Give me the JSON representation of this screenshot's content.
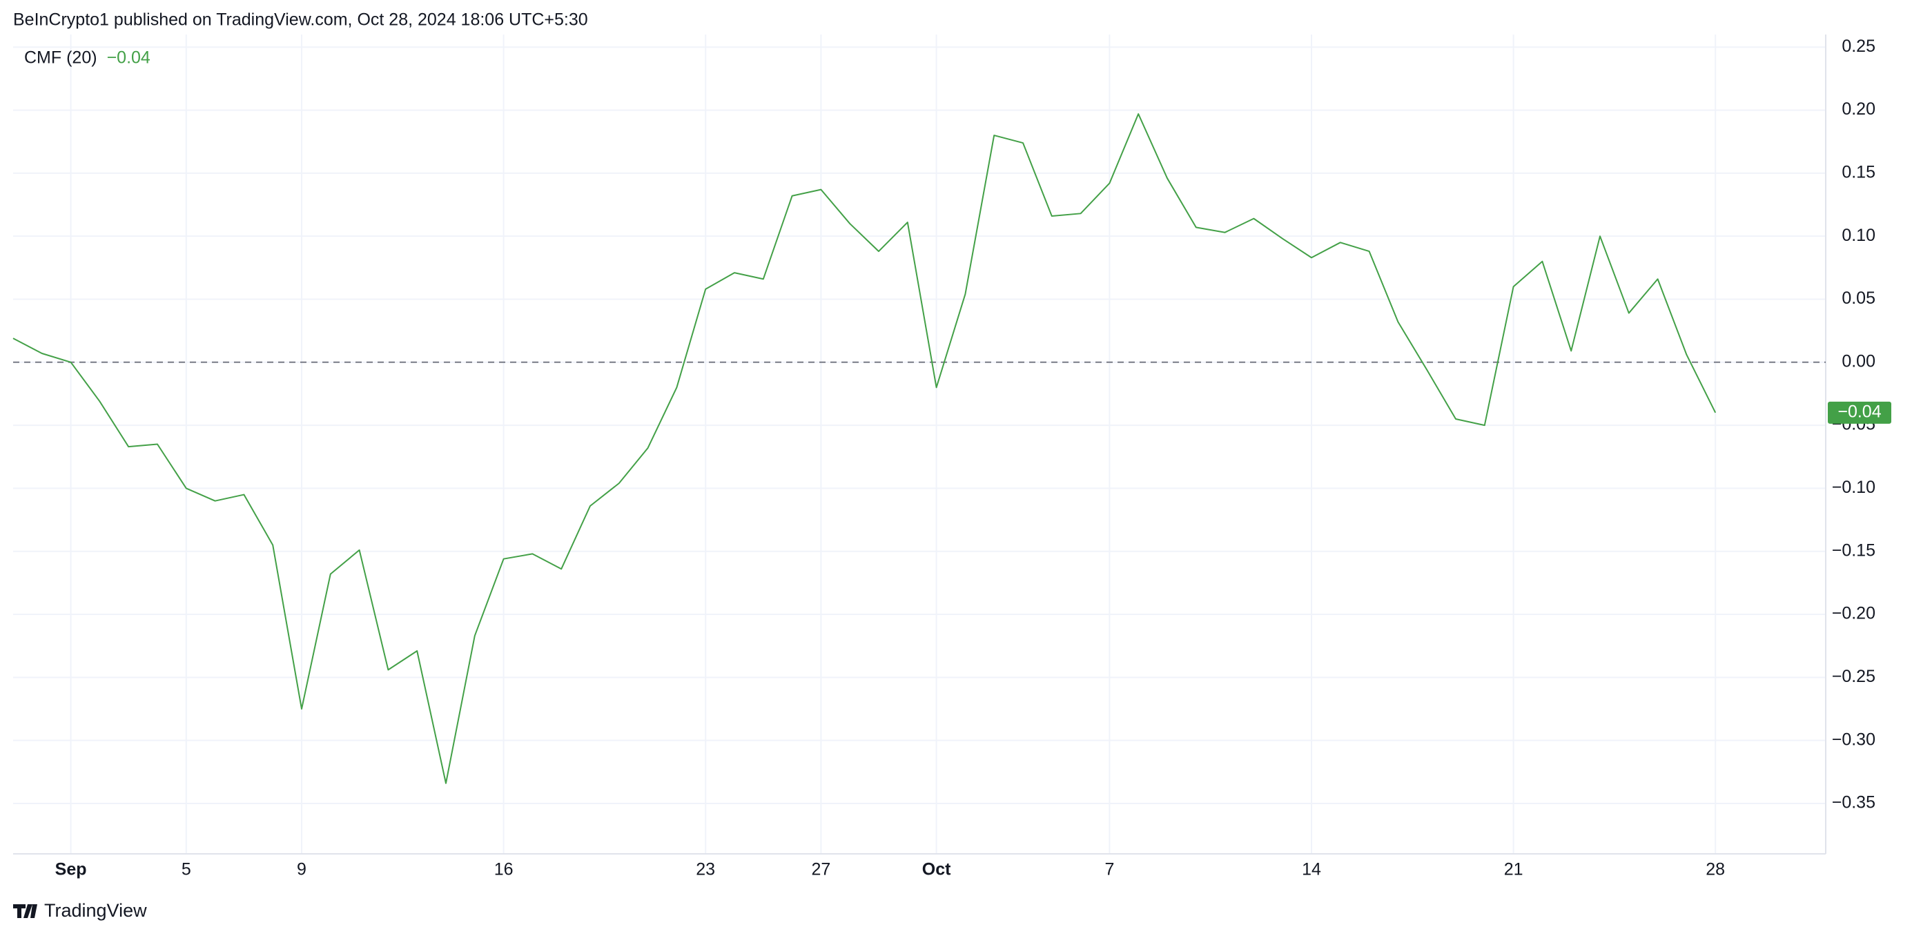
{
  "header": "BeInCrypto1 published on TradingView.com, Oct 28, 2024 18:06 UTC+5:30",
  "footer": "TradingView",
  "chart_data": {
    "type": "line",
    "categories": [
      null,
      null,
      "Sep",
      null,
      null,
      null,
      "5",
      null,
      null,
      null,
      "9",
      null,
      null,
      null,
      null,
      null,
      null,
      "16",
      null,
      null,
      null,
      null,
      null,
      null,
      "23",
      null,
      null,
      null,
      "27",
      null,
      null,
      null,
      "Oct",
      null,
      null,
      null,
      null,
      null,
      "7",
      null,
      null,
      null,
      null,
      null,
      null,
      "14",
      null,
      null,
      null,
      null,
      null,
      null,
      "21",
      null,
      null,
      null,
      null,
      null,
      null,
      "28"
    ],
    "series": [
      {
        "name": "CMF (20)",
        "color": "#43a047",
        "values": [
          0.019,
          0.007,
          0.0,
          -0.031,
          -0.067,
          -0.065,
          -0.1,
          -0.11,
          -0.105,
          -0.145,
          -0.275,
          -0.168,
          -0.149,
          -0.244,
          -0.229,
          -0.334,
          -0.217,
          -0.156,
          -0.152,
          -0.164,
          -0.114,
          -0.096,
          -0.068,
          -0.02,
          0.058,
          0.071,
          0.066,
          0.132,
          0.137,
          0.11,
          0.088,
          0.111,
          -0.02,
          0.054,
          0.18,
          0.174,
          0.116,
          0.118,
          0.142,
          0.197,
          0.146,
          0.107,
          0.103,
          0.114,
          0.098,
          0.083,
          0.095,
          0.088,
          0.032,
          -0.006,
          -0.045,
          -0.05,
          0.06,
          0.08,
          0.009,
          0.1,
          0.039,
          0.066,
          0.006,
          -0.04
        ],
        "value_labels": [
          null,
          null,
          null,
          null,
          null,
          null,
          null,
          null,
          null,
          null,
          null,
          null,
          null,
          null,
          null,
          null,
          null,
          null,
          null,
          null,
          null,
          null,
          null,
          null,
          null,
          null,
          null,
          null,
          null,
          null,
          null,
          null,
          null,
          null,
          null,
          null,
          null,
          null,
          null,
          null,
          null,
          null,
          null,
          null,
          null,
          null,
          null,
          null,
          null,
          null,
          null,
          null,
          null,
          null,
          null,
          null,
          null,
          null,
          null,
          "−0.04"
        ]
      }
    ],
    "ylim": [
      -0.39,
      0.26
    ],
    "yticks": [
      0.25,
      {
        "value": 0.2,
        "label": "0.20"
      },
      0.15,
      {
        "value": 0.1,
        "label": "0.10"
      },
      0.05,
      {
        "value": 0,
        "label": "0.00"
      },
      {
        "value": -0.05,
        "label": "−0.05"
      },
      {
        "value": -0.1,
        "label": "−0.10"
      },
      {
        "value": -0.15,
        "label": "−0.15"
      },
      {
        "value": -0.2,
        "label": "−0.20"
      },
      {
        "value": -0.25,
        "label": "−0.25"
      },
      {
        "value": -0.3,
        "label": "−0.30"
      },
      {
        "value": -0.35,
        "label": "−0.35"
      }
    ],
    "reference_line": 0,
    "grid": true
  }
}
